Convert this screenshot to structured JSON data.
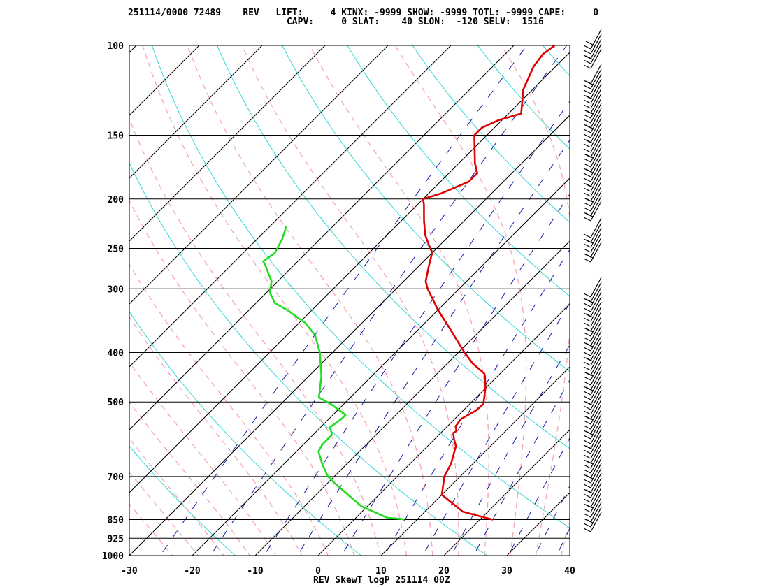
{
  "header": {
    "line1": "251114/0000 72489    REV   LIFT:     4 KINX: -9999 SHOW: -9999 TOTL: -9999 CAPE:     0",
    "line2": "                             CAPV:     0 SLAT:    40 SLON:  -120 SELV:  1516"
  },
  "footer": "REV SkewT logP 251114 00Z",
  "colors": {
    "temperature": "#e00000",
    "dewpoint": "#22dd22",
    "isobars_isotherms": "#000000",
    "dry_adiabats": "#33d6d6",
    "moist_adiabats": "#f4a8b4",
    "mixing_ratio": "#1a1aa8",
    "wind_barbs": "#000000"
  },
  "chart_data": {
    "type": "line",
    "subtype": "skew-t log-p",
    "xlim": [
      -30,
      40
    ],
    "ylim": [
      1000,
      100
    ],
    "yscale": "log",
    "x_ticks": [
      "-30",
      "-20",
      "-10",
      "0",
      "10",
      "20",
      "30",
      "40"
    ],
    "y_ticks": [
      "100",
      "150",
      "200",
      "250",
      "300",
      "400",
      "500",
      "700",
      "850",
      "925",
      "1000"
    ],
    "series": [
      {
        "role": "temperature",
        "points": [
          [
            850,
            22.1
          ],
          [
            845,
            21.0
          ],
          [
            820,
            16.0
          ],
          [
            760,
            10.0
          ],
          [
            700,
            7.5
          ],
          [
            660,
            6.5
          ],
          [
            610,
            4.5
          ],
          [
            590,
            3.0
          ],
          [
            575,
            2.0
          ],
          [
            570,
            2.2
          ],
          [
            558,
            1.3
          ],
          [
            540,
            1.0
          ],
          [
            520,
            2.0
          ],
          [
            505,
            2.2
          ],
          [
            470,
            0.0
          ],
          [
            445,
            -2.0
          ],
          [
            440,
            -2.5
          ],
          [
            420,
            -6.0
          ],
          [
            400,
            -9.0
          ],
          [
            360,
            -15.0
          ],
          [
            330,
            -20.0
          ],
          [
            300,
            -25.0
          ],
          [
            290,
            -26.5
          ],
          [
            270,
            -28.5
          ],
          [
            260,
            -29.5
          ],
          [
            255,
            -30.0
          ],
          [
            245,
            -32.0
          ],
          [
            235,
            -34.0
          ],
          [
            220,
            -36.5
          ],
          [
            205,
            -39.0
          ],
          [
            200,
            -40.0
          ],
          [
            195,
            -38.0
          ],
          [
            185,
            -35.5
          ],
          [
            178,
            -35.5
          ],
          [
            170,
            -37.5
          ],
          [
            150,
            -42.0
          ],
          [
            145,
            -42.0
          ],
          [
            140,
            -40.5
          ],
          [
            136,
            -38.0
          ],
          [
            122,
            -41.5
          ],
          [
            110,
            -43.5
          ],
          [
            104,
            -44.0
          ],
          [
            100,
            -43.5
          ]
        ]
      },
      {
        "role": "dewpoint",
        "points": [
          [
            850,
            8.0
          ],
          [
            848,
            7.5
          ],
          [
            843,
            5.0
          ],
          [
            800,
            -1.0
          ],
          [
            720,
            -9.0
          ],
          [
            700,
            -11.0
          ],
          [
            660,
            -14.0
          ],
          [
            625,
            -16.5
          ],
          [
            605,
            -17.0
          ],
          [
            580,
            -17.0
          ],
          [
            560,
            -18.5
          ],
          [
            540,
            -18.0
          ],
          [
            530,
            -18.0
          ],
          [
            505,
            -22.0
          ],
          [
            490,
            -25.0
          ],
          [
            445,
            -28.0
          ],
          [
            400,
            -32.0
          ],
          [
            370,
            -35.5
          ],
          [
            350,
            -39.0
          ],
          [
            330,
            -44.0
          ],
          [
            320,
            -47.0
          ],
          [
            305,
            -49.5
          ],
          [
            290,
            -51.0
          ],
          [
            270,
            -54.5
          ],
          [
            265,
            -55.5
          ],
          [
            255,
            -55.0
          ],
          [
            240,
            -56.0
          ],
          [
            230,
            -57.0
          ],
          [
            226,
            -57.5
          ]
        ]
      }
    ]
  }
}
